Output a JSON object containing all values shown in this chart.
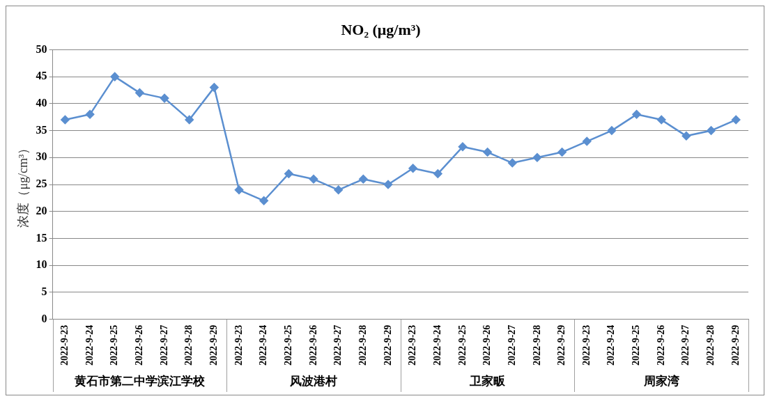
{
  "chart_data": {
    "type": "line",
    "title": "NO₂ (μg/m³)",
    "ylabel": "浓度（μg/cm³）",
    "categories": [
      "2022-9-23",
      "2022-9-24",
      "2022-9-25",
      "2022-9-26",
      "2022-9-27",
      "2022-9-28",
      "2022-9-29",
      "2022-9-23",
      "2022-9-24",
      "2022-9-25",
      "2022-9-26",
      "2022-9-27",
      "2022-9-28",
      "2022-9-29",
      "2022-9-23",
      "2022-9-24",
      "2022-9-25",
      "2022-9-26",
      "2022-9-27",
      "2022-9-28",
      "2022-9-29",
      "2022-9-23",
      "2022-9-24",
      "2022-9-25",
      "2022-9-26",
      "2022-9-27",
      "2022-9-28",
      "2022-9-29"
    ],
    "series": [
      {
        "color": "#5b8fd0",
        "values": [
          37,
          38,
          45,
          42,
          41,
          37,
          43,
          24,
          22,
          27,
          26,
          24,
          26,
          25,
          28,
          27,
          32,
          31,
          29,
          30,
          31,
          33,
          35,
          38,
          37,
          34,
          35,
          37
        ]
      }
    ],
    "annotations": [
      "黄石市第二中学滨江学校",
      "风波港村",
      "卫家畈",
      "周家湾"
    ],
    "ylim": [
      0,
      50
    ],
    "yticks": [
      0,
      5,
      10,
      15,
      20,
      25,
      30,
      35,
      40,
      45,
      50
    ],
    "grid": "y",
    "legend": false,
    "marker": "diamond",
    "line_style": "solid"
  }
}
